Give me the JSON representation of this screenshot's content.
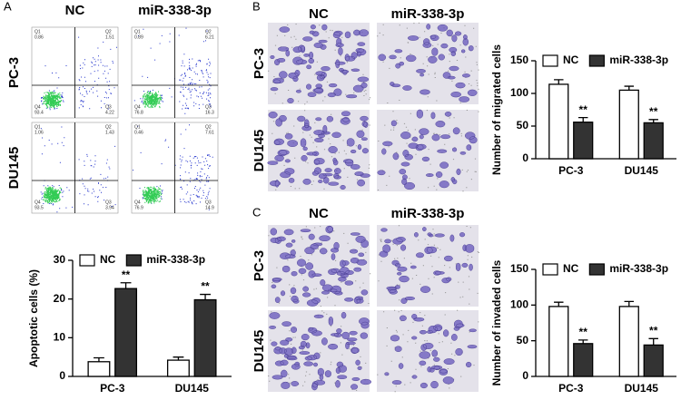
{
  "panel_labels": [
    "A",
    "B",
    "C"
  ],
  "flow": {
    "columns": [
      "NC",
      "miR-338-3p"
    ],
    "rows": [
      "PC-3",
      "DU145"
    ],
    "quadrant_names": [
      "Q1",
      "Q2",
      "Q3",
      "Q4"
    ],
    "plots": [
      [
        [
          0.86,
          1.51,
          4.22,
          93.4
        ],
        [
          0.89,
          6.21,
          16.3,
          76.8
        ]
      ],
      [
        [
          1.06,
          1.43,
          3.94,
          93.5
        ],
        [
          0.46,
          7.61,
          14.9,
          76.9
        ]
      ]
    ]
  },
  "migration": {
    "columns": [
      "NC",
      "miR-338-3p"
    ],
    "rows": [
      "PC-3",
      "DU145"
    ]
  },
  "invasion": {
    "columns": [
      "NC",
      "miR-338-3p"
    ],
    "rows": [
      "PC-3",
      "DU145"
    ]
  },
  "chart_data": [
    {
      "type": "bar",
      "y_label": "Apoptotic cells (%)",
      "categories": [
        "PC-3",
        "DU145"
      ],
      "ylim": [
        0,
        30
      ],
      "yticks": [
        0,
        10,
        20,
        30
      ],
      "legend": "top",
      "series": [
        {
          "name": "NC",
          "color": "#ffffff",
          "values": [
            3.8,
            4.2
          ],
          "errors": [
            1.0,
            0.8
          ]
        },
        {
          "name": "miR-338-3p",
          "color": "#333333",
          "values": [
            22.7,
            19.8
          ],
          "errors": [
            1.5,
            1.4
          ],
          "annotations": [
            "**",
            "**"
          ]
        }
      ]
    },
    {
      "type": "bar",
      "y_label": "Number of migrated cells",
      "categories": [
        "PC-3",
        "DU145"
      ],
      "ylim": [
        0,
        150
      ],
      "yticks": [
        0,
        50,
        100,
        150
      ],
      "legend": "top",
      "series": [
        {
          "name": "NC",
          "color": "#ffffff",
          "values": [
            114,
            105
          ],
          "errors": [
            7,
            6
          ]
        },
        {
          "name": "miR-338-3p",
          "color": "#333333",
          "values": [
            56,
            55
          ],
          "errors": [
            7,
            5
          ],
          "annotations": [
            "**",
            "**"
          ]
        }
      ]
    },
    {
      "type": "bar",
      "y_label": "Number of invaded cells",
      "categories": [
        "PC-3",
        "DU145"
      ],
      "ylim": [
        0,
        150
      ],
      "yticks": [
        0,
        50,
        100,
        150
      ],
      "legend": "top",
      "series": [
        {
          "name": "NC",
          "color": "#ffffff",
          "values": [
            98,
            98
          ],
          "errors": [
            6,
            7
          ]
        },
        {
          "name": "miR-338-3p",
          "color": "#333333",
          "values": [
            46,
            44
          ],
          "errors": [
            5,
            9
          ],
          "annotations": [
            "**",
            "**"
          ]
        }
      ]
    }
  ]
}
